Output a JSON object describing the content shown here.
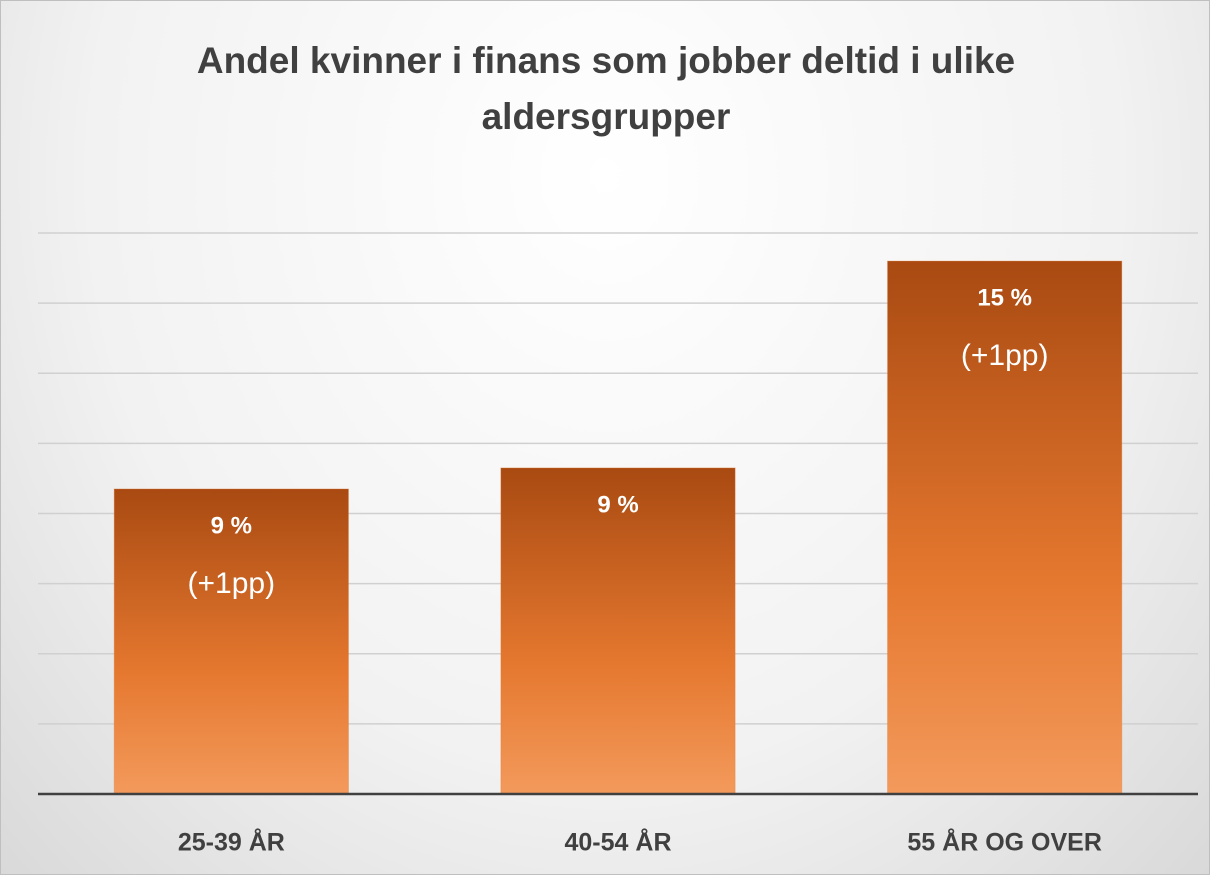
{
  "chart_data": {
    "type": "bar",
    "title": "Andel kvinner i finans som jobber deltid i ulike aldersgrupper",
    "categories": [
      "25-39 ÅR",
      "40-54 ÅR",
      "55 ÅR OG OVER"
    ],
    "values": [
      8.7,
      9.3,
      15.2
    ],
    "value_labels": [
      "9 %",
      "9 %",
      "15 %"
    ],
    "change_labels": [
      "(+1pp)",
      null,
      "(+1pp)"
    ],
    "color": "#e07830",
    "ylim": [
      0,
      16
    ],
    "yticks": [
      0,
      2,
      4,
      6,
      8,
      10,
      12,
      14,
      16
    ],
    "grid": true
  }
}
